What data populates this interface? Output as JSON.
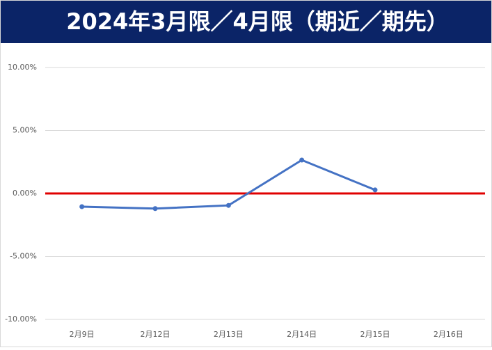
{
  "chart_data": {
    "type": "line",
    "title": "2024年3月限／4月限（期近／期先）",
    "categories": [
      "2月9日",
      "2月12日",
      "2月13日",
      "2月14日",
      "2月15日",
      "2月16日"
    ],
    "series": [
      {
        "color": "#4472c4",
        "values": [
          -1.05,
          -1.2,
          -0.95,
          2.65,
          0.28,
          null
        ]
      }
    ],
    "ylim": [
      -10,
      10
    ],
    "yticks": [
      {
        "value": 10,
        "label": "10.00%"
      },
      {
        "value": 5,
        "label": "5.00%"
      },
      {
        "value": 0,
        "label": "0.00%"
      },
      {
        "value": -5,
        "label": "-5.00%"
      },
      {
        "value": -10,
        "label": "-10.00%"
      }
    ],
    "grid": true
  }
}
